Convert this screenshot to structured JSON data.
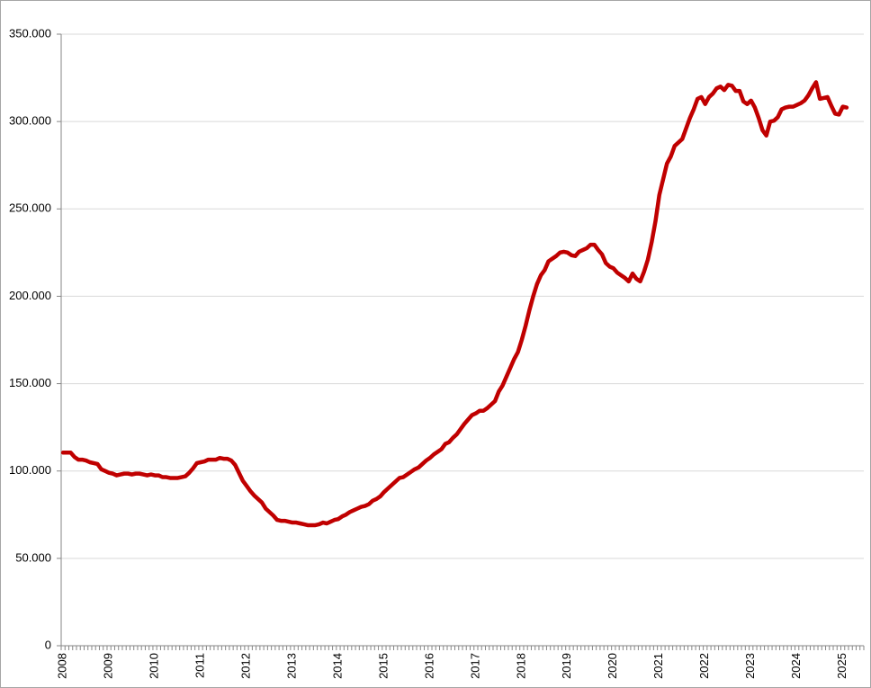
{
  "chart_data": {
    "type": "line",
    "categories": [
      "2008",
      null,
      null,
      null,
      null,
      null,
      null,
      null,
      null,
      null,
      null,
      null,
      "2009",
      null,
      null,
      null,
      null,
      null,
      null,
      null,
      null,
      null,
      null,
      null,
      "2010",
      null,
      null,
      null,
      null,
      null,
      null,
      null,
      null,
      null,
      null,
      null,
      "2011",
      null,
      null,
      null,
      null,
      null,
      null,
      null,
      null,
      null,
      null,
      null,
      "2012",
      null,
      null,
      null,
      null,
      null,
      null,
      null,
      null,
      null,
      null,
      null,
      "2013",
      null,
      null,
      null,
      null,
      null,
      null,
      null,
      null,
      null,
      null,
      null,
      "2014",
      null,
      null,
      null,
      null,
      null,
      null,
      null,
      null,
      null,
      null,
      null,
      "2015",
      null,
      null,
      null,
      null,
      null,
      null,
      null,
      null,
      null,
      null,
      null,
      "2016",
      null,
      null,
      null,
      null,
      null,
      null,
      null,
      null,
      null,
      null,
      null,
      "2017",
      null,
      null,
      null,
      null,
      null,
      null,
      null,
      null,
      null,
      null,
      null,
      "2018",
      null,
      null,
      null,
      null,
      null,
      null,
      null,
      null,
      null,
      null,
      null,
      "2019",
      null,
      null,
      null,
      null,
      null,
      null,
      null,
      null,
      null,
      null,
      null,
      "2020",
      null,
      null,
      null,
      null,
      null,
      null,
      null,
      null,
      null,
      null,
      null,
      "2021",
      null,
      null,
      null,
      null,
      null,
      null,
      null,
      null,
      null,
      null,
      null,
      "2022",
      null,
      null,
      null,
      null,
      null,
      null,
      null,
      null,
      null,
      null,
      null,
      "2023",
      null,
      null,
      null,
      null,
      null,
      null,
      null,
      null,
      null,
      null,
      null,
      "2024",
      null,
      null,
      null,
      null,
      null,
      null,
      null,
      null,
      null,
      null,
      null,
      "2025",
      null,
      null,
      null,
      null,
      null
    ],
    "series": [
      {
        "color": "#c00000",
        "values": [
          110500,
          110500,
          110500,
          108000,
          106500,
          106500,
          106000,
          105000,
          104500,
          104000,
          101000,
          100000,
          99000,
          98500,
          97500,
          98000,
          98500,
          98500,
          98000,
          98500,
          98500,
          98000,
          97500,
          98000,
          97500,
          97500,
          96500,
          96500,
          96000,
          96000,
          96000,
          96500,
          97000,
          99000,
          101500,
          104500,
          105000,
          105500,
          106500,
          106500,
          106500,
          107500,
          107000,
          107000,
          106000,
          103500,
          99000,
          94500,
          91500,
          88500,
          86000,
          84000,
          82000,
          78500,
          76500,
          74500,
          72000,
          71500,
          71500,
          71000,
          70500,
          70500,
          70000,
          69500,
          69000,
          69000,
          69000,
          69500,
          70500,
          70000,
          71000,
          72000,
          72500,
          74000,
          75000,
          76500,
          77500,
          78500,
          79500,
          80000,
          81000,
          83000,
          84000,
          85500,
          88000,
          90000,
          92000,
          94000,
          96000,
          96500,
          98000,
          99500,
          101000,
          102000,
          104000,
          106000,
          107500,
          109500,
          111000,
          112500,
          115500,
          116500,
          119000,
          121000,
          124000,
          127000,
          129500,
          132000,
          133000,
          134500,
          134500,
          136000,
          138000,
          140000,
          145500,
          149000,
          154000,
          159000,
          164000,
          168000,
          175000,
          183000,
          192000,
          200000,
          207000,
          212000,
          215000,
          220000,
          221500,
          223000,
          225000,
          225500,
          225000,
          223500,
          223000,
          225500,
          226500,
          227500,
          229500,
          229500,
          226500,
          224000,
          219000,
          217000,
          216000,
          213500,
          212000,
          210500,
          208500,
          213000,
          210000,
          208500,
          214000,
          221000,
          231000,
          243000,
          258000,
          267000,
          276000,
          280000,
          286000,
          288000,
          290000,
          296000,
          302000,
          307000,
          313000,
          314000,
          310000,
          314000,
          316000,
          319000,
          320000,
          318000,
          321000,
          320500,
          317500,
          317500,
          311500,
          310000,
          312000,
          308000,
          302000,
          295000,
          292000,
          300000,
          300500,
          302500,
          307000,
          308000,
          308500,
          308500,
          309500,
          310500,
          312000,
          315000,
          319000,
          322500,
          313000,
          313500,
          314000,
          309000,
          304500,
          304000,
          308500,
          308000,
          null,
          null,
          null,
          null
        ]
      }
    ],
    "ylim": [
      0,
      350000
    ],
    "yticks": [
      0,
      {
        "value": 50000,
        "label": "50.000"
      },
      {
        "value": 100000,
        "label": "100.000"
      },
      {
        "value": 150000,
        "label": "150.000"
      },
      {
        "value": 200000,
        "label": "200.000"
      },
      {
        "value": 250000,
        "label": "250.000"
      },
      {
        "value": 300000,
        "label": "300.000"
      },
      {
        "value": 350000,
        "label": "350.000"
      }
    ],
    "grid": true
  }
}
